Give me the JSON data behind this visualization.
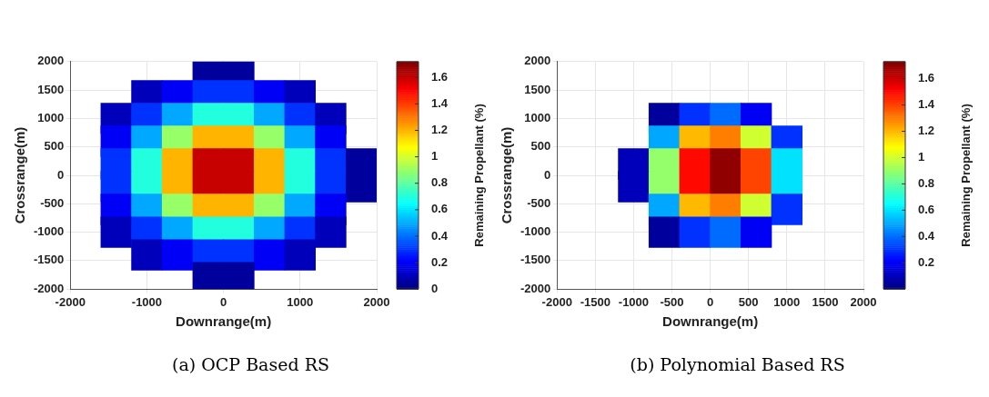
{
  "chart_data": [
    {
      "type": "scatter",
      "xlabel": "Downrange(m)",
      "ylabel": "Crossrange(m)",
      "clabel": "Remaining Propellant (%)",
      "marker": "square",
      "x": [
        -200,
        200,
        -1000,
        -600,
        -200,
        200,
        600,
        1000,
        -1400,
        -1000,
        -600,
        -200,
        200,
        600,
        1000,
        1400,
        -1400,
        -1000,
        -600,
        -200,
        200,
        600,
        1000,
        1400,
        -1400,
        -1000,
        -600,
        -200,
        200,
        600,
        1000,
        1400,
        1800,
        -1400,
        -1000,
        -600,
        -200,
        200,
        600,
        1000,
        1400,
        1800,
        -1400,
        -1000,
        -600,
        -200,
        200,
        600,
        1000,
        1400,
        -1400,
        -1000,
        -600,
        -200,
        200,
        600,
        1000,
        1400,
        -1000,
        -600,
        -200,
        200,
        600,
        1000,
        -200,
        200
      ],
      "values": [
        1800,
        1800,
        1400,
        1400,
        1400,
        1400,
        1400,
        1400,
        1000,
        1000,
        1000,
        1000,
        1000,
        1000,
        1000,
        1000,
        600,
        600,
        600,
        600,
        600,
        600,
        600,
        600,
        200,
        200,
        200,
        200,
        200,
        200,
        200,
        200,
        200,
        -200,
        -200,
        -200,
        -200,
        -200,
        -200,
        -200,
        -200,
        -200,
        -600,
        -600,
        -600,
        -600,
        -600,
        -600,
        -600,
        -600,
        -1000,
        -1000,
        -1000,
        -1000,
        -1000,
        -1000,
        -1000,
        -1000,
        -1400,
        -1400,
        -1400,
        -1400,
        -1400,
        -1400,
        -1800,
        -1800
      ],
      "cvalues": [
        0.05,
        0.05,
        0.1,
        0.2,
        0.3,
        0.3,
        0.2,
        0.1,
        0.1,
        0.3,
        0.5,
        0.7,
        0.7,
        0.5,
        0.3,
        0.1,
        0.2,
        0.5,
        0.9,
        1.2,
        1.2,
        0.9,
        0.5,
        0.2,
        0.3,
        0.7,
        1.2,
        1.6,
        1.6,
        1.2,
        0.7,
        0.3,
        0.05,
        0.3,
        0.7,
        1.2,
        1.6,
        1.6,
        1.2,
        0.7,
        0.3,
        0.05,
        0.2,
        0.5,
        0.9,
        1.2,
        1.2,
        0.9,
        0.5,
        0.2,
        0.1,
        0.3,
        0.5,
        0.7,
        0.7,
        0.5,
        0.3,
        0.1,
        0.1,
        0.2,
        0.3,
        0.3,
        0.2,
        0.1,
        0.05,
        0.05
      ],
      "xlim": [
        -2000,
        2000
      ],
      "xticks": [
        -2000,
        -1000,
        0,
        1000,
        2000
      ],
      "ylim": [
        -2000,
        2000
      ],
      "yticks": [
        -2000,
        -1500,
        -1000,
        -500,
        0,
        500,
        1000,
        1500,
        2000
      ],
      "clim": [
        0,
        1.72
      ],
      "cticks": [
        0,
        0.2,
        0.4,
        0.6,
        0.8,
        1,
        1.2,
        1.4,
        1.6
      ],
      "grid": true,
      "annotations": [
        "(a) OCP Based RS"
      ]
    },
    {
      "type": "scatter",
      "xlabel": "Downrange(m)",
      "ylabel": "Crossrange(m)",
      "clabel": "Remaining Propellant (%)",
      "marker": "square",
      "x": [
        -600,
        -200,
        200,
        600,
        -600,
        -200,
        200,
        600,
        1000,
        -1000,
        -600,
        -200,
        200,
        600,
        1000,
        -1000,
        -600,
        -200,
        200,
        600,
        1000,
        -600,
        -200,
        200,
        600,
        1000,
        -600,
        -200,
        200,
        600
      ],
      "values": [
        1000,
        1000,
        1000,
        1000,
        600,
        600,
        600,
        600,
        600,
        200,
        200,
        200,
        200,
        200,
        200,
        -200,
        -200,
        -200,
        -200,
        -200,
        -200,
        -600,
        -600,
        -600,
        -600,
        -600,
        -1000,
        -1000,
        -1000,
        -1000
      ],
      "cvalues": [
        0.05,
        0.3,
        0.4,
        0.2,
        0.5,
        1.2,
        1.3,
        1.0,
        0.3,
        0.1,
        0.9,
        1.5,
        1.7,
        1.4,
        0.6,
        0.1,
        0.9,
        1.5,
        1.7,
        1.4,
        0.6,
        0.5,
        1.2,
        1.3,
        1.0,
        0.3,
        0.05,
        0.3,
        0.4,
        0.2
      ],
      "xlim": [
        -2000,
        2000
      ],
      "xticks": [
        -2000,
        -1500,
        -1000,
        -500,
        0,
        500,
        1000,
        1500,
        2000
      ],
      "ylim": [
        -2000,
        2000
      ],
      "yticks": [
        -2000,
        -1500,
        -1000,
        -500,
        0,
        500,
        1000,
        1500,
        2000
      ],
      "clim": [
        0,
        1.73
      ],
      "cticks": [
        0.2,
        0.4,
        0.6,
        0.8,
        1,
        1.2,
        1.4,
        1.6
      ],
      "grid": true,
      "annotations": [
        "(b) Polynomial Based RS"
      ]
    }
  ]
}
